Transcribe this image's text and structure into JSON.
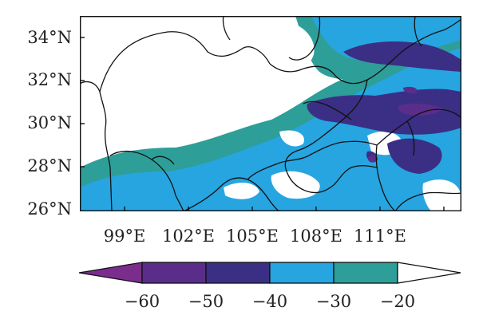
{
  "map": {
    "y_axis_ticks": [
      "34°N",
      "32°N",
      "30°N",
      "28°N",
      "26°N"
    ],
    "x_axis_ticks": [
      "99°E",
      "102°E",
      "105°E",
      "108°E",
      "111°E"
    ],
    "extent": {
      "lon": [
        97,
        113
      ],
      "lat": [
        26,
        35
      ]
    }
  },
  "colorbar": {
    "tick_labels": [
      "−60",
      "−50",
      "−40",
      "−30",
      "−20"
    ],
    "levels": [
      -60,
      -50,
      -40,
      -30,
      -20
    ],
    "colors": {
      "below_min": "#7b2d8e",
      "level_60_50": "#5b2d8a",
      "level_50_40": "#3b2f85",
      "level_40_30": "#26a5e0",
      "level_30_20": "#2e9e98",
      "above_max": "#ffffff"
    }
  },
  "colors": {
    "deep_purple": "#3b2f85",
    "mid_purple": "#5b2d8a",
    "light_blue": "#26a5e0",
    "teal": "#2e9e98",
    "boundary": "#111111"
  }
}
